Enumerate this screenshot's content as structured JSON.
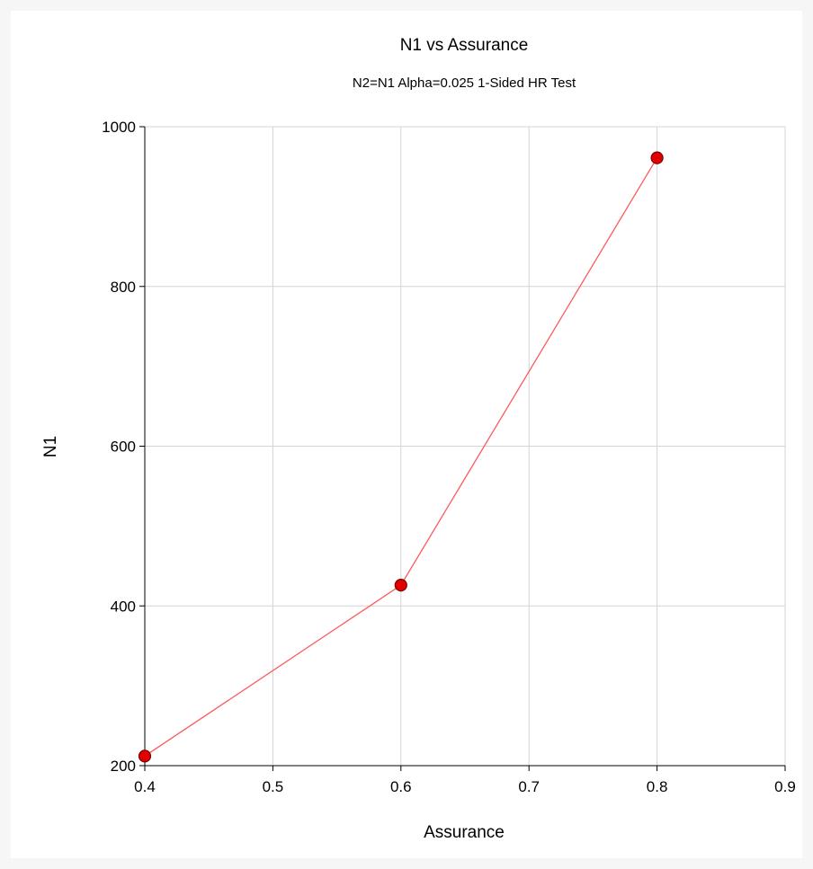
{
  "chart_data": {
    "type": "line",
    "title": "N1 vs Assurance",
    "subtitle": "N2=N1 Alpha=0.025 1-Sided HR Test",
    "xlabel": "Assurance",
    "ylabel": "N1",
    "xlim": [
      0.4,
      0.9
    ],
    "ylim": [
      200,
      1000
    ],
    "xticks": [
      0.4,
      0.5,
      0.6,
      0.7,
      0.8,
      0.9
    ],
    "xtick_labels": [
      "0.4",
      "0.5",
      "0.6",
      "0.7",
      "0.8",
      "0.9"
    ],
    "yticks": [
      200,
      400,
      600,
      800,
      1000
    ],
    "ytick_labels": [
      "200",
      "400",
      "600",
      "800",
      "1000"
    ],
    "grid": true,
    "series": [
      {
        "x": [
          0.4,
          0.6,
          0.8
        ],
        "y": [
          212,
          426,
          961
        ],
        "line_color": "#ff5a5a",
        "marker_color": "#e00000",
        "marker_edge": "#7a0000"
      }
    ]
  }
}
